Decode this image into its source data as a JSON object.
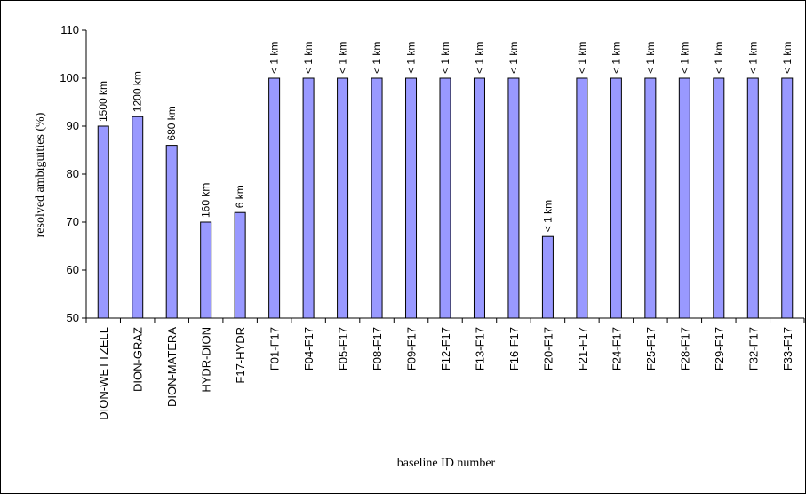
{
  "chart_data": {
    "type": "bar",
    "title": "",
    "xlabel": "baseline ID number",
    "ylabel": "resolved ambiguities (%)",
    "ylim": [
      50,
      110
    ],
    "yticks": [
      50,
      60,
      70,
      80,
      90,
      100,
      110
    ],
    "grid": false,
    "bar_color": "#9999ff",
    "categories": [
      "DION-WETTZELL",
      "DION-GRAZ",
      "DION-MATERA",
      "HYDR-DION",
      "F17-HYDR",
      "F01-F17",
      "F04-F17",
      "F05-F17",
      "F08-F17",
      "F09-F17",
      "F12-F17",
      "F13-F17",
      "F16-F17",
      "F20-F17",
      "F21-F17",
      "F24-F17",
      "F25-F17",
      "F28-F17",
      "F29-F17",
      "F32-F17",
      "F33-F17"
    ],
    "values": [
      90,
      92,
      86,
      70,
      72,
      100,
      100,
      100,
      100,
      100,
      100,
      100,
      100,
      67,
      100,
      100,
      100,
      100,
      100,
      100,
      100
    ],
    "data_labels": [
      "1500 km",
      "1200 km",
      "680 km",
      "160 km",
      "6 km",
      "< 1 km",
      "< 1 km",
      "< 1 km",
      "< 1 km",
      "< 1 km",
      "< 1 km",
      "< 1 km",
      "< 1 km",
      "< 1 km",
      "< 1 km",
      "< 1 km",
      "< 1 km",
      "< 1 km",
      "< 1 km",
      "< 1 km",
      "< 1 km"
    ]
  }
}
